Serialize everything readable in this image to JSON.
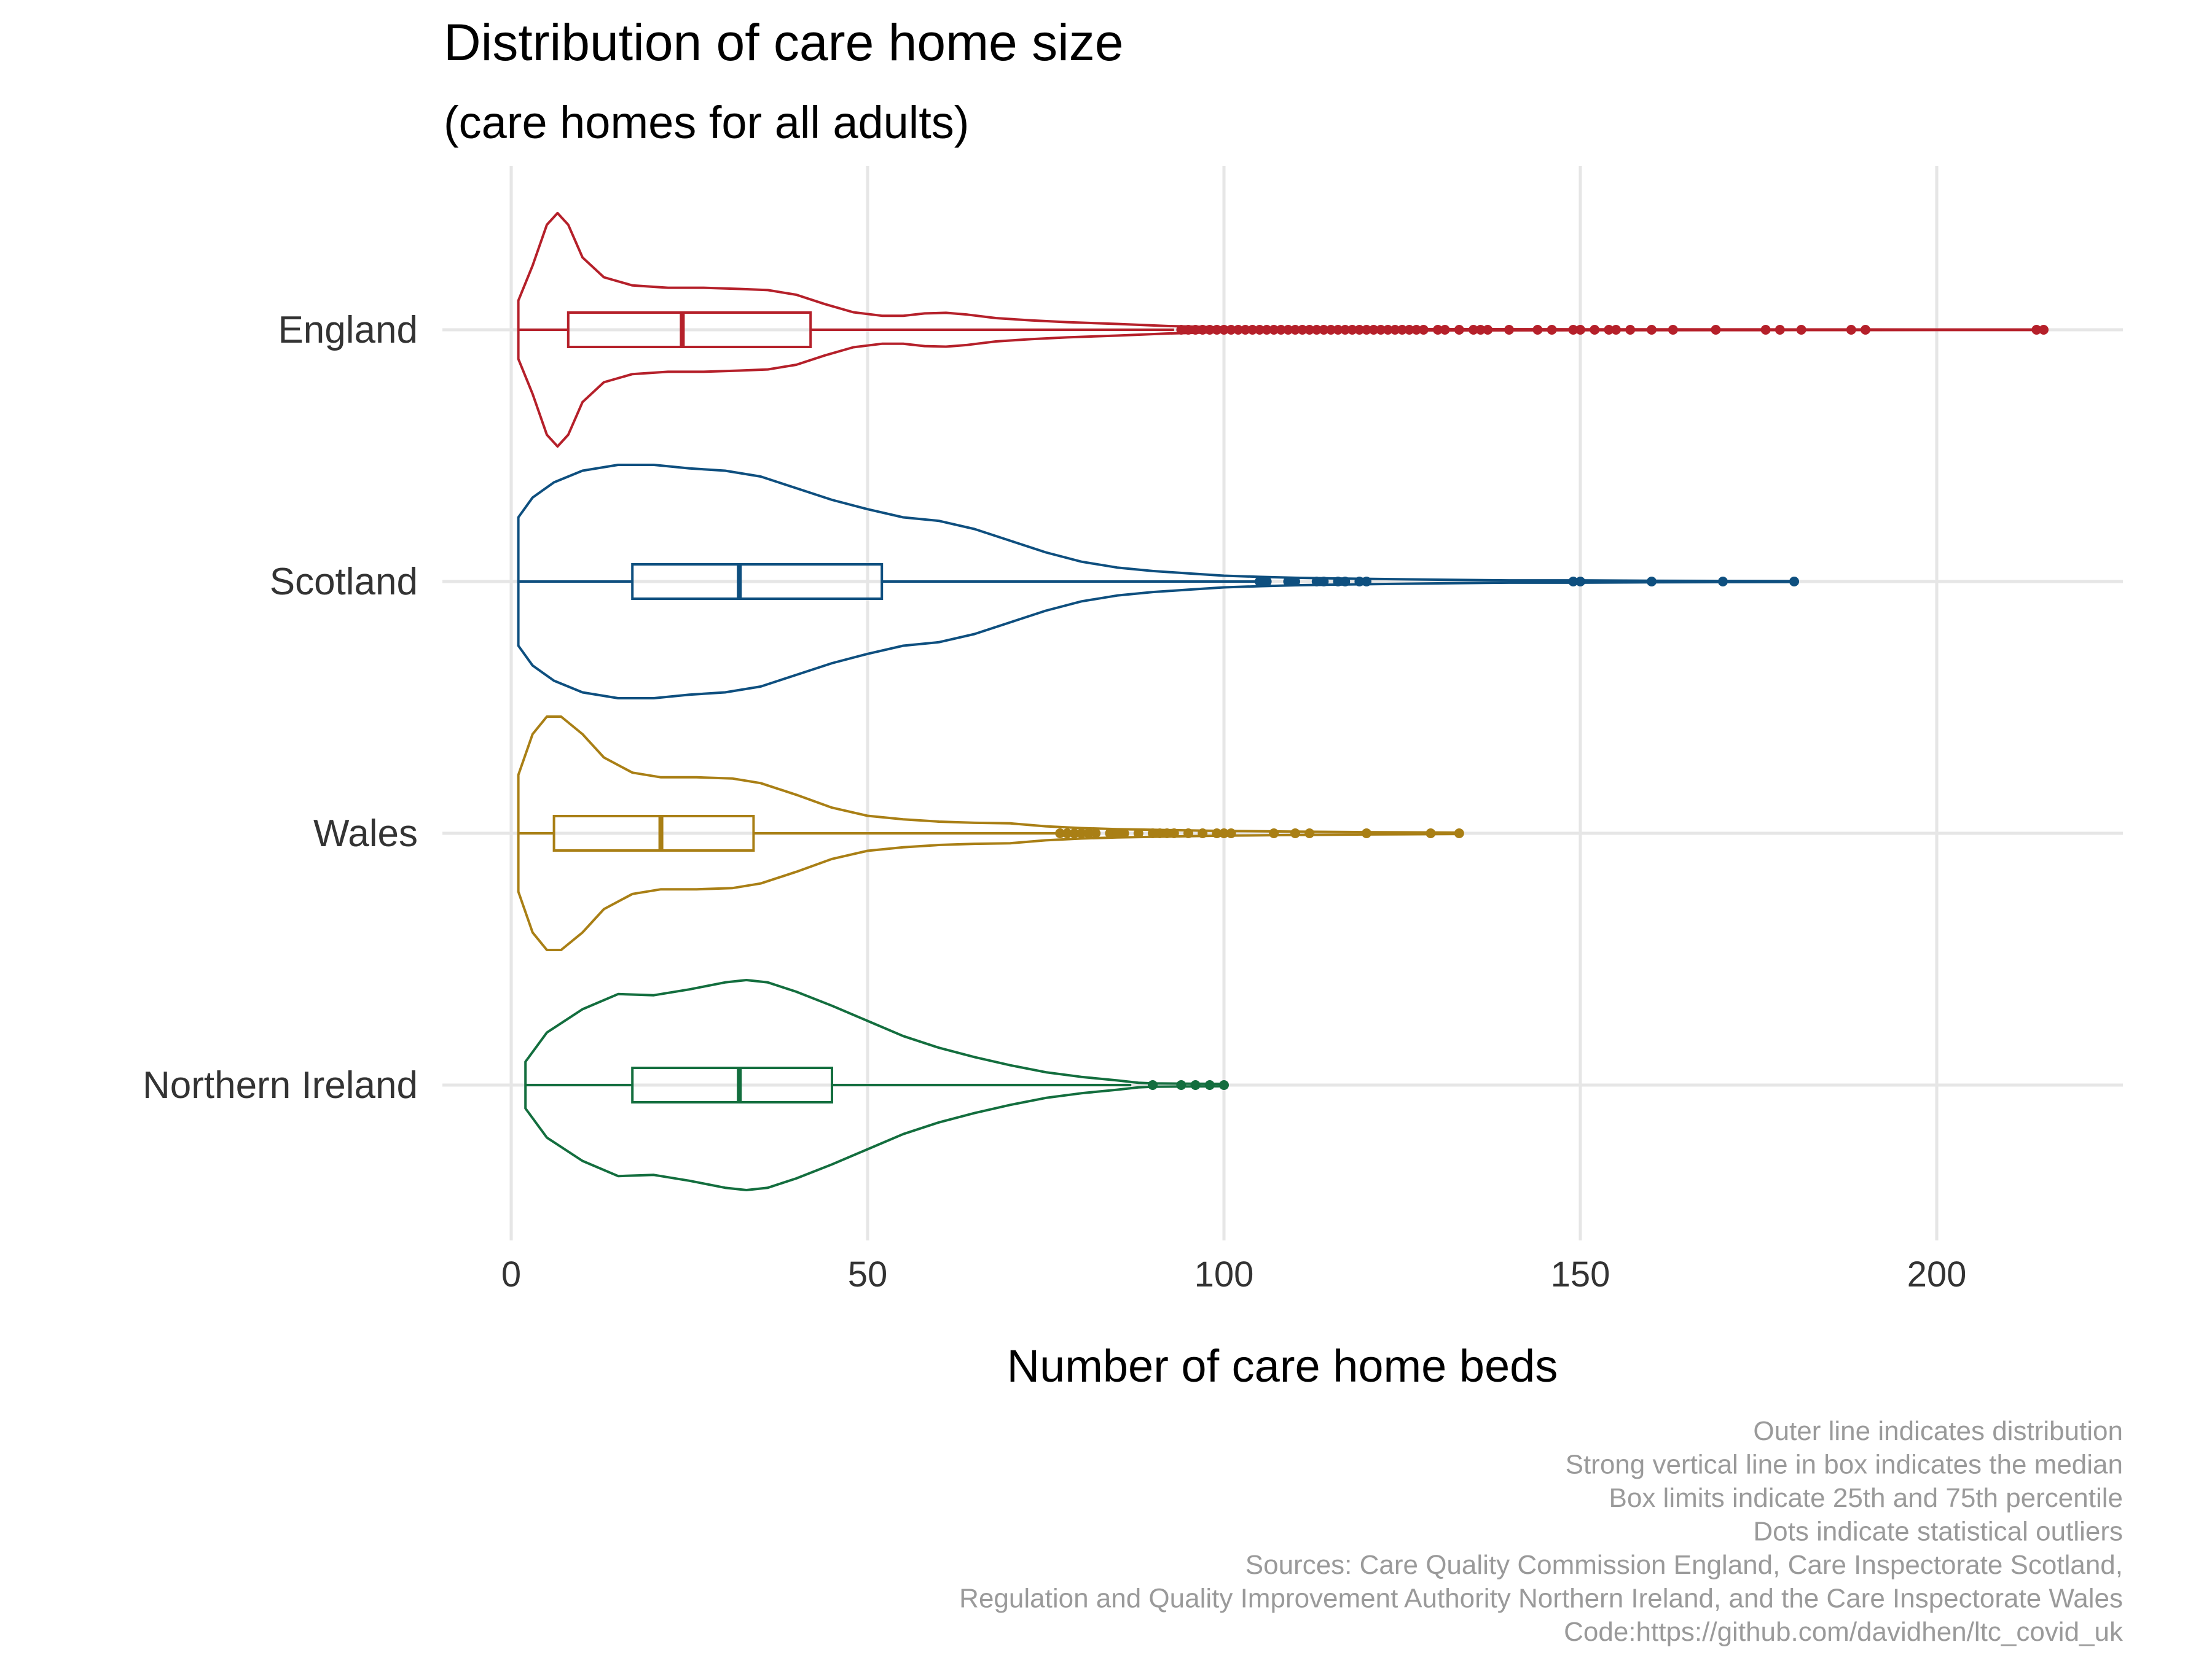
{
  "chart_data": {
    "type": "violin",
    "title": "Distribution of care home size",
    "subtitle": "(care homes for all adults)",
    "xlabel": "Number of care home beds",
    "ylabel": "",
    "xlim": [
      0,
      225
    ],
    "x_ticks": [
      "0",
      "50",
      "100",
      "150",
      "200"
    ],
    "x_tick_values": [
      0,
      50,
      100,
      150,
      200
    ],
    "grid": true,
    "legend": "none",
    "caption": [
      "Outer line indicates distribution",
      "Strong vertical line in box indicates the median",
      "Box limits indicate 25th and 75th percentile",
      "Dots indicate statistical outliers",
      "Sources: Care Quality Commission England, Care Inspectorate Scotland,",
      "Regulation and Quality Improvement Authority Northern Ireland, and the Care Inspectorate Wales",
      "Code:https://github.com/davidhen/ltc_covid_uk"
    ],
    "categories": [
      "England",
      "Scotland",
      "Wales",
      "Northern Ireland"
    ],
    "series": [
      {
        "name": "England",
        "color": "#b5202a",
        "min": 1,
        "max": 215,
        "q1": 8,
        "median": 24,
        "q3": 42,
        "whisker_low": 1,
        "whisker_high": 93,
        "density": [
          [
            1,
            0.25
          ],
          [
            3,
            0.55
          ],
          [
            5,
            0.9
          ],
          [
            6.5,
            1.0
          ],
          [
            8,
            0.9
          ],
          [
            10,
            0.62
          ],
          [
            13,
            0.45
          ],
          [
            17,
            0.38
          ],
          [
            22,
            0.36
          ],
          [
            27,
            0.36
          ],
          [
            32,
            0.35
          ],
          [
            36,
            0.34
          ],
          [
            40,
            0.3
          ],
          [
            44,
            0.22
          ],
          [
            48,
            0.15
          ],
          [
            52,
            0.12
          ],
          [
            55,
            0.12
          ],
          [
            58,
            0.14
          ],
          [
            61,
            0.145
          ],
          [
            64,
            0.13
          ],
          [
            68,
            0.1
          ],
          [
            73,
            0.08
          ],
          [
            78,
            0.065
          ],
          [
            85,
            0.05
          ],
          [
            92,
            0.032
          ],
          [
            100,
            0.02
          ],
          [
            110,
            0.012
          ],
          [
            125,
            0.006
          ],
          [
            150,
            0.004
          ],
          [
            175,
            0.003
          ],
          [
            200,
            0.002
          ],
          [
            215,
            0.002
          ]
        ],
        "outliers": [
          94,
          95,
          96,
          97,
          98,
          99,
          100,
          101,
          102,
          103,
          104,
          105,
          106,
          107,
          108,
          109,
          110,
          111,
          112,
          113,
          114,
          115,
          116,
          117,
          118,
          119,
          120,
          121,
          122,
          123,
          124,
          125,
          126,
          127,
          128,
          130,
          131,
          133,
          135,
          136,
          137,
          140,
          144,
          146,
          149,
          150,
          152,
          154,
          155,
          157,
          160,
          163,
          169,
          176,
          178,
          181,
          188,
          190,
          214,
          215
        ]
      },
      {
        "name": "Scotland",
        "color": "#0e4f7f",
        "min": 1,
        "max": 180,
        "q1": 17,
        "median": 32,
        "q3": 52,
        "whisker_low": 1,
        "whisker_high": 105,
        "density": [
          [
            1,
            0.55
          ],
          [
            3,
            0.72
          ],
          [
            6,
            0.85
          ],
          [
            10,
            0.95
          ],
          [
            15,
            1.0
          ],
          [
            20,
            1.0
          ],
          [
            25,
            0.97
          ],
          [
            30,
            0.95
          ],
          [
            35,
            0.9
          ],
          [
            40,
            0.8
          ],
          [
            45,
            0.7
          ],
          [
            50,
            0.62
          ],
          [
            55,
            0.55
          ],
          [
            60,
            0.52
          ],
          [
            65,
            0.45
          ],
          [
            70,
            0.35
          ],
          [
            75,
            0.25
          ],
          [
            80,
            0.17
          ],
          [
            85,
            0.12
          ],
          [
            90,
            0.09
          ],
          [
            95,
            0.07
          ],
          [
            100,
            0.05
          ],
          [
            105,
            0.04
          ],
          [
            110,
            0.032
          ],
          [
            115,
            0.027
          ],
          [
            120,
            0.023
          ],
          [
            130,
            0.016
          ],
          [
            140,
            0.01
          ],
          [
            150,
            0.01
          ],
          [
            160,
            0.007
          ],
          [
            170,
            0.005
          ],
          [
            180,
            0.004
          ]
        ],
        "outliers": [
          105,
          106,
          109,
          110,
          113,
          114,
          116,
          117,
          119,
          120,
          149,
          150,
          160,
          170,
          180
        ]
      },
      {
        "name": "Wales",
        "color": "#a97f15",
        "min": 1,
        "max": 133,
        "q1": 6,
        "median": 21,
        "q3": 34,
        "whisker_low": 1,
        "whisker_high": 77,
        "density": [
          [
            1,
            0.5
          ],
          [
            3,
            0.85
          ],
          [
            5,
            1.0
          ],
          [
            7,
            1.0
          ],
          [
            10,
            0.85
          ],
          [
            13,
            0.65
          ],
          [
            17,
            0.52
          ],
          [
            21,
            0.48
          ],
          [
            26,
            0.48
          ],
          [
            31,
            0.47
          ],
          [
            35,
            0.43
          ],
          [
            40,
            0.33
          ],
          [
            45,
            0.22
          ],
          [
            50,
            0.15
          ],
          [
            55,
            0.12
          ],
          [
            60,
            0.1
          ],
          [
            65,
            0.09
          ],
          [
            70,
            0.085
          ],
          [
            75,
            0.06
          ],
          [
            80,
            0.045
          ],
          [
            85,
            0.035
          ],
          [
            90,
            0.03
          ],
          [
            95,
            0.025
          ],
          [
            100,
            0.02
          ],
          [
            110,
            0.015
          ],
          [
            120,
            0.01
          ],
          [
            133,
            0.006
          ]
        ],
        "outliers": [
          77,
          78,
          79,
          80,
          81,
          82,
          84,
          85,
          86,
          88,
          90,
          91,
          92,
          93,
          95,
          97,
          99,
          100,
          101,
          107,
          110,
          112,
          120,
          129,
          133
        ]
      },
      {
        "name": "Northern Ireland",
        "color": "#136e3e",
        "min": 2,
        "max": 100,
        "q1": 17,
        "median": 32,
        "q3": 45,
        "whisker_low": 2,
        "whisker_high": 87,
        "density": [
          [
            2,
            0.2
          ],
          [
            5,
            0.45
          ],
          [
            10,
            0.65
          ],
          [
            15,
            0.78
          ],
          [
            20,
            0.77
          ],
          [
            25,
            0.82
          ],
          [
            30,
            0.88
          ],
          [
            33,
            0.9
          ],
          [
            36,
            0.88
          ],
          [
            40,
            0.8
          ],
          [
            45,
            0.68
          ],
          [
            50,
            0.55
          ],
          [
            55,
            0.42
          ],
          [
            60,
            0.32
          ],
          [
            65,
            0.24
          ],
          [
            70,
            0.17
          ],
          [
            75,
            0.11
          ],
          [
            80,
            0.07
          ],
          [
            85,
            0.04
          ],
          [
            88,
            0.02
          ],
          [
            90,
            0.015
          ],
          [
            95,
            0.012
          ],
          [
            100,
            0.01
          ]
        ],
        "outliers": [
          90,
          94,
          96,
          98,
          100
        ]
      }
    ]
  }
}
